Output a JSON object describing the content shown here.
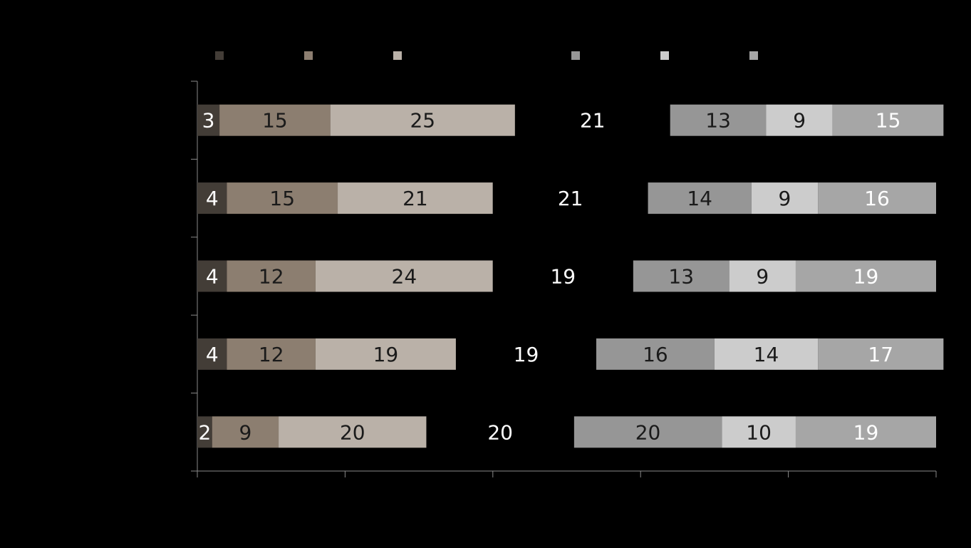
{
  "chart_data": {
    "type": "bar",
    "orientation": "horizontal",
    "stacked": true,
    "xlim": [
      0,
      100
    ],
    "grid": false,
    "legend": "top",
    "categories": [
      "",
      "",
      "",
      "",
      ""
    ],
    "series": [
      {
        "color": "#433d37",
        "values": [
          3,
          4,
          4,
          4,
          2
        ]
      },
      {
        "color": "#8c7e70",
        "values": [
          15,
          15,
          12,
          12,
          9
        ]
      },
      {
        "color": "#bab1a8",
        "values": [
          25,
          21,
          24,
          19,
          20
        ]
      },
      {
        "color": "#000000",
        "values": [
          21,
          21,
          19,
          19,
          20
        ]
      },
      {
        "color": "#969696",
        "values": [
          13,
          14,
          13,
          16,
          20
        ]
      },
      {
        "color": "#cccccc",
        "values": [
          9,
          9,
          9,
          14,
          10
        ]
      },
      {
        "color": "#a6a6a6",
        "values": [
          15,
          16,
          19,
          17,
          19
        ]
      }
    ]
  }
}
